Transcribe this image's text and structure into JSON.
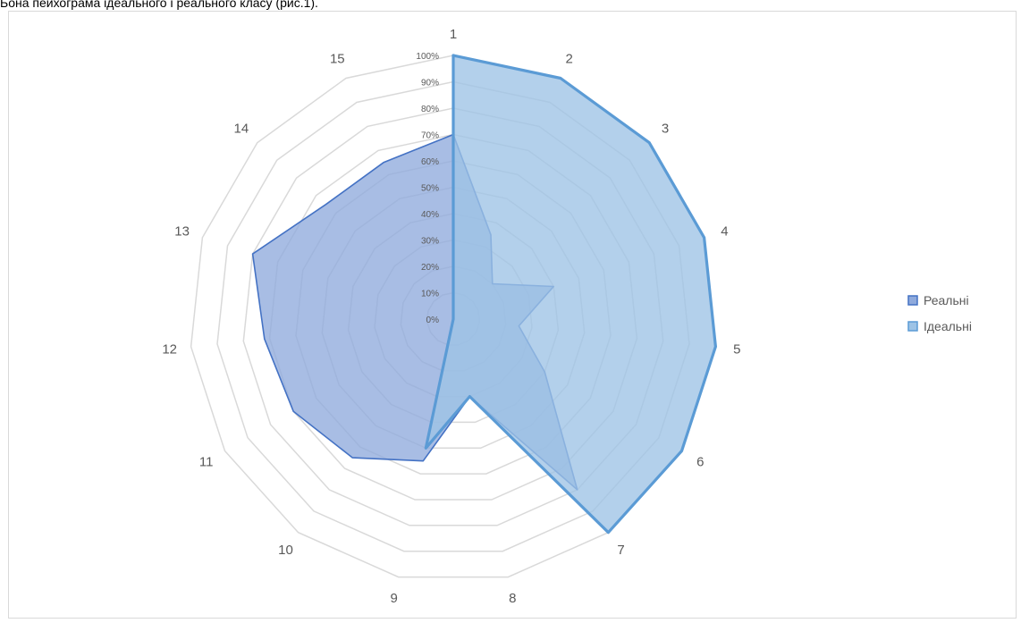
{
  "caption": "Бона пейхограма ідеального і реального класу (рис.1).",
  "chart_data": {
    "type": "radar",
    "categories": [
      "1",
      "2",
      "3",
      "4",
      "5",
      "6",
      "7",
      "8",
      "9",
      "10",
      "11",
      "12",
      "13",
      "14",
      "15"
    ],
    "radial_ticks": [
      "0%",
      "10%",
      "20%",
      "30%",
      "40%",
      "50%",
      "60%",
      "70%",
      "80%",
      "90%",
      "100%"
    ],
    "rlim": [
      0,
      100
    ],
    "grid": true,
    "legend_position": "right",
    "series": [
      {
        "name": "Реальні",
        "values": [
          70,
          35,
          20,
          40,
          25,
          40,
          80,
          30,
          55,
          65,
          70,
          72,
          80,
          65,
          65
        ],
        "fill": "#8faadc",
        "stroke": "#4472c4"
      },
      {
        "name": "Ідеальні",
        "values": [
          100,
          100,
          100,
          100,
          100,
          100,
          100,
          30,
          50,
          0,
          0,
          0,
          0,
          0,
          0
        ],
        "fill": "#9dc3e6",
        "stroke": "#5b9bd5"
      }
    ]
  }
}
